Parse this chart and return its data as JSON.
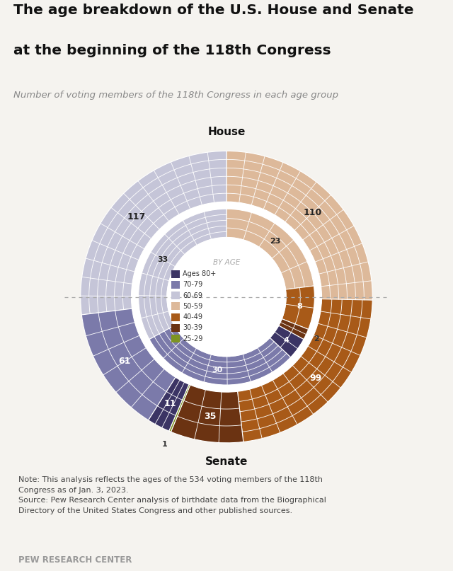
{
  "title_line1": "The age breakdown of the U.S. House and Senate",
  "title_line2": "at the beginning of the 118th Congress",
  "subtitle": "Number of voting members of the 118th Congress in each age group",
  "house_label": "House",
  "senate_label": "Senate",
  "note1": "Note: This analysis reflects the ages of the 534 voting members of the 118th",
  "note2": "Congress as of Jan. 3, 2023.",
  "note3": "Source: Pew Research Center analysis of birthdate data from the Biographical",
  "note4": "Directory of the United States Congress and other published sources.",
  "footer": "PEW RESEARCH CENTER",
  "legend_title": "BY AGE",
  "colors": {
    "80+": "#3b3464",
    "70-79": "#7b7aaa",
    "60-69": "#c5c5d8",
    "50-59": "#ddb99a",
    "40-49": "#a85a18",
    "30-39": "#6b3312",
    "25-29": "#7d9422"
  },
  "house_data": {
    "80+": 11,
    "70-79": 61,
    "60-69": 117,
    "50-59": 110,
    "40-49": 99,
    "30-39": 35,
    "25-29": 1
  },
  "senate_data": {
    "80+": 4,
    "70-79": 30,
    "60-69": 33,
    "50-59": 23,
    "40-49": 8,
    "30-39": 2,
    "25-29": 0
  },
  "background_color": "#f5f3ef",
  "grid_color": "#ffffff",
  "r_outer_house": 0.92,
  "r_inner_house": 0.6,
  "r_outer_senate": 0.555,
  "r_inner_senate": 0.375
}
